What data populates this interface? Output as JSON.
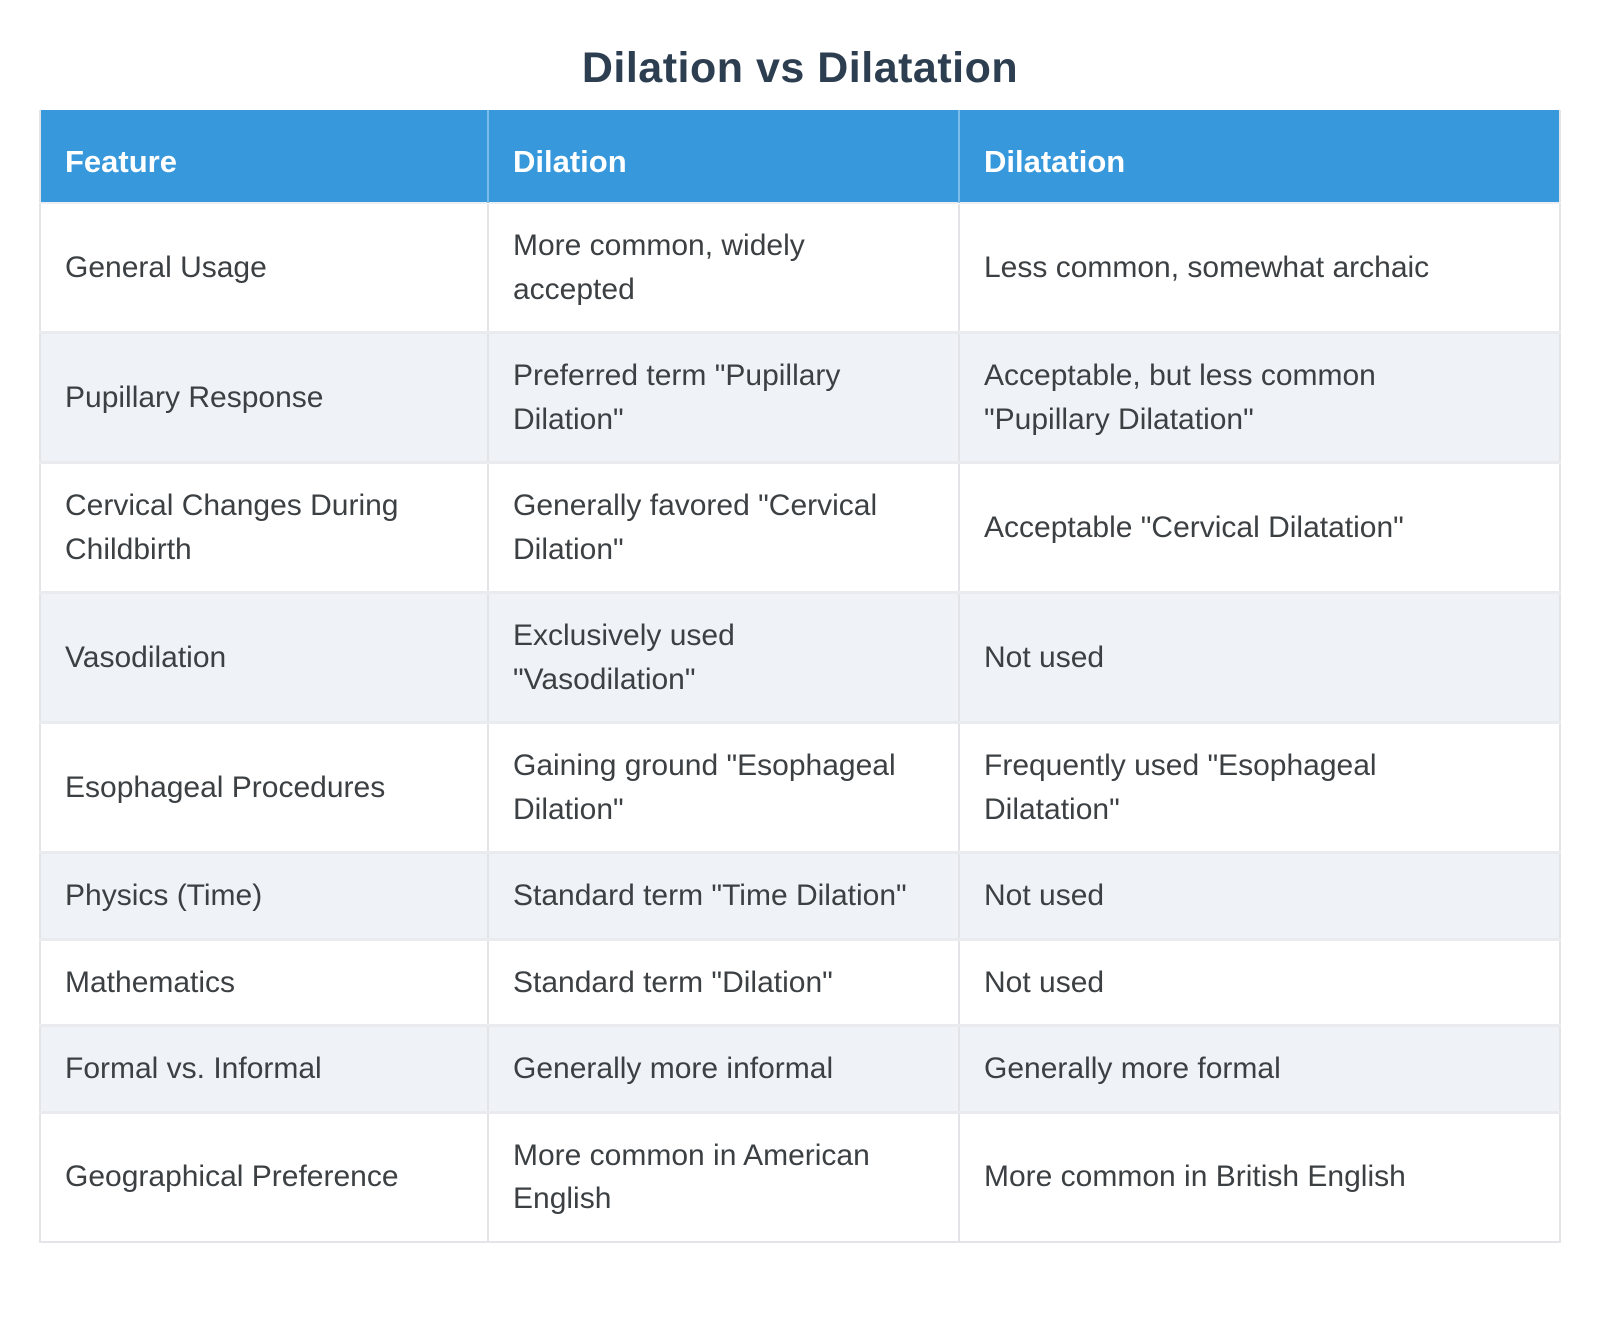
{
  "page_title": "Dilation vs Dilatation",
  "chart_data": {
    "type": "table",
    "title": "Dilation vs Dilatation",
    "columns": [
      "Feature",
      "Dilation",
      "Dilatation"
    ],
    "rows": [
      {
        "feature": "General Usage",
        "dilation": "More common, widely\naccepted",
        "dilatation": "Less common, somewhat archaic"
      },
      {
        "feature": "Pupillary Response",
        "dilation": "Preferred term \"Pupillary\nDilation\"",
        "dilatation": "Acceptable, but less common\n\"Pupillary Dilatation\""
      },
      {
        "feature": "Cervical Changes During\nChildbirth",
        "dilation": "Generally favored \"Cervical\nDilation\"",
        "dilatation": "Acceptable \"Cervical Dilatation\""
      },
      {
        "feature": "Vasodilation",
        "dilation": "Exclusively used\n\"Vasodilation\"",
        "dilatation": "Not used"
      },
      {
        "feature": "Esophageal Procedures",
        "dilation": "Gaining ground \"Esophageal\nDilation\"",
        "dilatation": "Frequently used \"Esophageal\nDilatation\""
      },
      {
        "feature": "Physics (Time)",
        "dilation": "Standard term \"Time Dilation\"",
        "dilatation": "Not used"
      },
      {
        "feature": "Mathematics",
        "dilation": "Standard term \"Dilation\"",
        "dilatation": "Not used"
      },
      {
        "feature": "Formal vs. Informal",
        "dilation": "Generally more informal",
        "dilatation": "Generally more formal"
      },
      {
        "feature": "Geographical Preference",
        "dilation": "More common in American\nEnglish",
        "dilatation": "More common in British English"
      }
    ],
    "legend": "none",
    "grid": "cell borders, light gray"
  },
  "colors": {
    "header_bg": "#3798dc",
    "header_text": "#ffffff",
    "title_text": "#2c3e50",
    "body_text": "#3c4043",
    "row_alt_bg": "#eff2f7",
    "row_bg": "#ffffff",
    "border": "#e2e4e8"
  }
}
